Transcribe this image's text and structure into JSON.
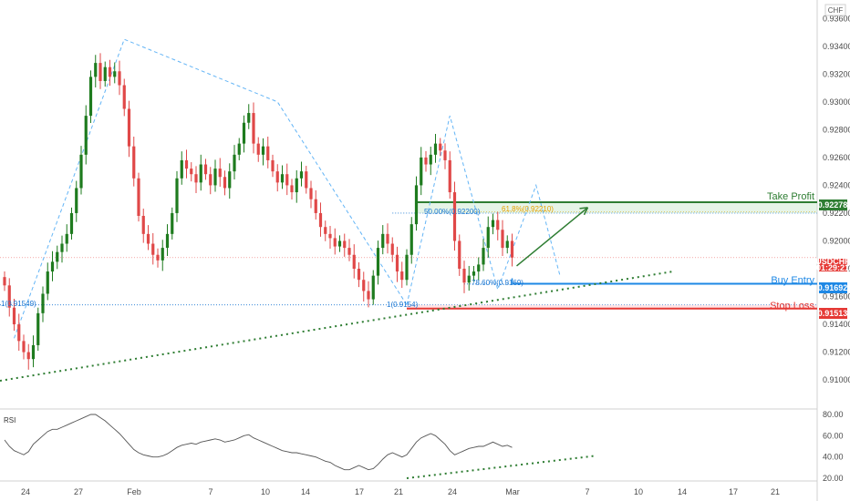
{
  "chart_data": [
    {
      "type": "candlestick",
      "currency": "CHF",
      "symbol": "USDCHF",
      "countdown": "01:29:21",
      "ylim": [
        0.9085,
        0.937
      ],
      "y_ticks": [
        "0.93600",
        "0.93400",
        "0.93200",
        "0.93000",
        "0.92800",
        "0.92600",
        "0.92400",
        "0.92200",
        "0.92000",
        "0.91800",
        "0.91600",
        "0.91400",
        "0.91200",
        "0.91000"
      ],
      "x_ticks": [
        "24",
        "27",
        "Feb",
        "7",
        "10",
        "14",
        "17",
        "21",
        "24",
        "Mar",
        "7",
        "10",
        "14",
        "17",
        "21"
      ],
      "last_price": 0.9188,
      "series": [
        {
          "name": "",
          "type": "close",
          "values": [
            0.9168,
            0.9152,
            0.914,
            0.9128,
            0.912,
            0.9115,
            0.9125,
            0.9148,
            0.9162,
            0.9178,
            0.9185,
            0.9192,
            0.9198,
            0.9205,
            0.922,
            0.9238,
            0.9262,
            0.929,
            0.9318,
            0.9328,
            0.9315,
            0.9325,
            0.9318,
            0.9322,
            0.9312,
            0.9295,
            0.9268,
            0.9245,
            0.9218,
            0.9205,
            0.9198,
            0.919,
            0.9186,
            0.9195,
            0.9205,
            0.922,
            0.9245,
            0.9258,
            0.9252,
            0.9248,
            0.9242,
            0.9255,
            0.9248,
            0.924,
            0.9252,
            0.9246,
            0.9238,
            0.925,
            0.9262,
            0.927,
            0.9285,
            0.9292,
            0.927,
            0.9262,
            0.9268,
            0.9258,
            0.925,
            0.9242,
            0.9248,
            0.924,
            0.9235,
            0.9245,
            0.925,
            0.9238,
            0.923,
            0.922,
            0.921,
            0.9205,
            0.9202,
            0.9196,
            0.92,
            0.9195,
            0.919,
            0.918,
            0.9172,
            0.9164,
            0.9158,
            0.9175,
            0.9195,
            0.9205,
            0.9198,
            0.919,
            0.9178,
            0.9172,
            0.919,
            0.9212,
            0.924,
            0.926,
            0.9255,
            0.9262,
            0.927,
            0.9265,
            0.9258,
            0.9235,
            0.92,
            0.918,
            0.917,
            0.9175,
            0.9178,
            0.9183,
            0.9195,
            0.921,
            0.9215,
            0.9208,
            0.9195,
            0.92,
            0.9188
          ]
        }
      ]
    },
    {
      "type": "line",
      "title": "RSI",
      "ylim": [
        20,
        80
      ],
      "y_ticks": [
        "80.00",
        "60.00",
        "40.00",
        "20.00"
      ],
      "series": [
        {
          "name": "",
          "values": [
            56,
            50,
            46,
            44,
            42,
            45,
            52,
            56,
            60,
            64,
            66,
            66,
            68,
            70,
            72,
            74,
            76,
            78,
            80,
            80,
            77,
            74,
            70,
            66,
            62,
            57,
            52,
            47,
            44,
            42,
            41,
            40,
            40,
            41,
            43,
            46,
            49,
            51,
            52,
            53,
            52,
            54,
            55,
            56,
            57,
            56,
            54,
            55,
            56,
            58,
            60,
            61,
            58,
            56,
            54,
            52,
            50,
            48,
            46,
            45,
            44,
            44,
            43,
            42,
            41,
            40,
            38,
            36,
            35,
            32,
            30,
            28,
            28,
            30,
            32,
            30,
            28,
            29,
            33,
            38,
            42,
            44,
            42,
            40,
            42,
            48,
            54,
            58,
            60,
            62,
            60,
            56,
            52,
            46,
            42,
            44,
            46,
            48,
            49,
            50,
            50,
            52,
            54,
            52,
            50,
            51,
            49
          ]
        }
      ]
    }
  ],
  "annotations": {
    "take_profit_label": "Take Profit",
    "take_profit_price": "0.92278",
    "take_profit_value": 0.92278,
    "buy_entry_label": "Buy Entry",
    "buy_entry_price": "0.91692",
    "buy_entry_value": 0.91692,
    "stop_loss_label": "Stop Loss",
    "stop_loss_price": "0.91513",
    "stop_loss_value": 0.91513,
    "fib_50": "50.00%(0.92200)",
    "fib_618": "61.8%(0.92210)",
    "fib_786": "78.60%(0.9169)",
    "fib_1a": "1(0.9154)",
    "fib_1b": "1(0.91549)",
    "fib_50_value": 0.922,
    "fib_618_value": 0.9221,
    "fib_786_value": 0.9169,
    "fib_1_value": 0.9154
  },
  "colors": {
    "up": "#1e7b1e",
    "down": "#e04848",
    "take_profit": "#2e7d32",
    "buy_entry": "#1e88e5",
    "stop_loss": "#e53935",
    "fib": "#1976d2",
    "pattern": "#64b5f6",
    "trend": "#2e7d32",
    "rsi": "#555555",
    "price_tag": "#e53935"
  }
}
